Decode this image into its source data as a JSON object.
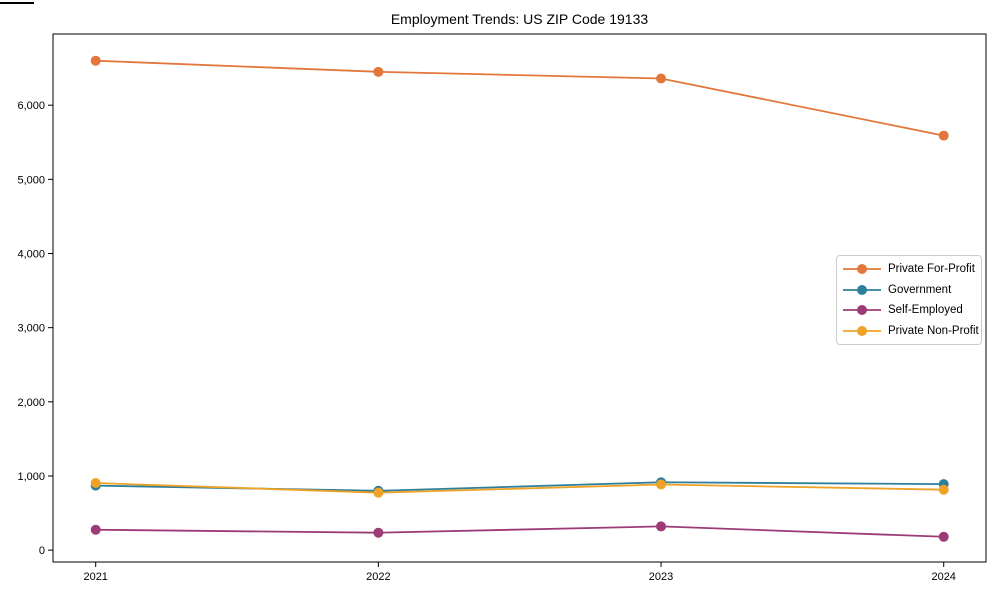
{
  "figure": {
    "title": "Employment Trends: US ZIP Code 19133"
  },
  "chart_data": {
    "type": "line",
    "title": "Employment Trends: US ZIP Code 19133",
    "categories": [
      "2021",
      "2022",
      "2023",
      "2024"
    ],
    "series": [
      {
        "name": "Private For-Profit",
        "color": "#e2773b",
        "values": [
          6600,
          6450,
          6360,
          5590
        ]
      },
      {
        "name": "Government",
        "color": "#2d7f9a",
        "values": [
          870,
          800,
          915,
          890
        ]
      },
      {
        "name": "Self-Employed",
        "color": "#9d3b77",
        "values": [
          275,
          235,
          320,
          180
        ]
      },
      {
        "name": "Private Non-Profit",
        "color": "#efa226",
        "values": [
          905,
          775,
          885,
          815
        ]
      }
    ],
    "xlabel": "",
    "ylabel": "",
    "yticks": {
      "values": [
        0,
        1000,
        2000,
        3000,
        4000,
        5000,
        6000
      ],
      "labels": [
        "0",
        "1,000",
        "2,000",
        "3,000",
        "4,000",
        "5,000",
        "6,000"
      ]
    },
    "ylim": [
      -160,
      6960
    ],
    "grid": false,
    "legend_position": "center right",
    "marker": "circle"
  }
}
